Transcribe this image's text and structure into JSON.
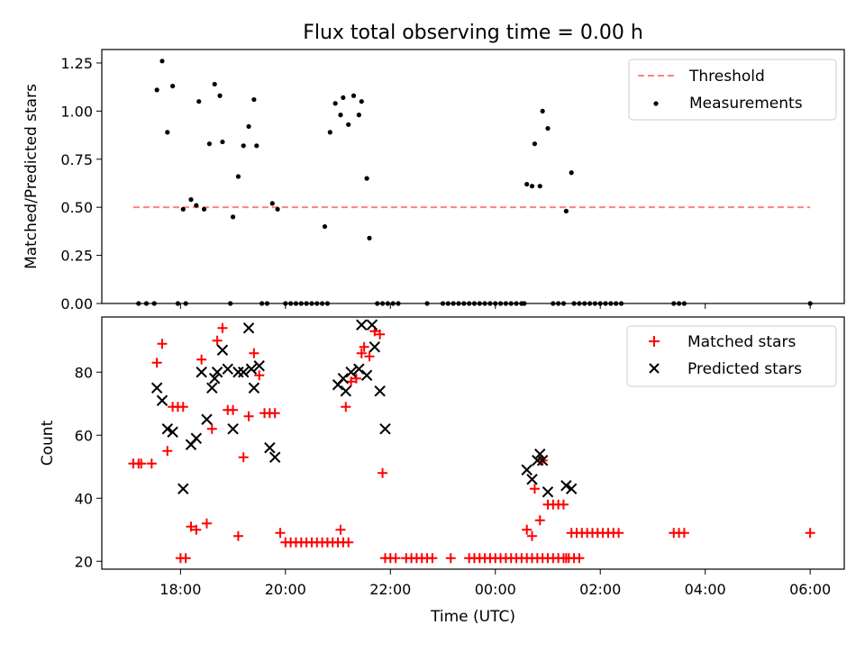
{
  "chart_data": [
    {
      "type": "scatter",
      "title": "Flux total observing time = 0.00 h",
      "xlabel": "",
      "ylabel": "Matched/Predicted stars",
      "ylim": [
        0,
        1.32
      ],
      "yticks": [
        "0.00",
        "0.25",
        "0.50",
        "0.75",
        "1.00",
        "1.25"
      ],
      "grid": false,
      "legend_position": "top-right",
      "threshold": {
        "name": "Threshold",
        "value": 0.5,
        "x_start": -6.9,
        "x_end": 6.0,
        "color": "#ff8080"
      },
      "series": [
        {
          "name": "Measurements",
          "color": "#000000",
          "points": [
            [
              -6.8,
              0
            ],
            [
              -6.65,
              0
            ],
            [
              -6.5,
              0
            ],
            [
              -6.45,
              1.11
            ],
            [
              -6.35,
              1.26
            ],
            [
              -6.25,
              0.89
            ],
            [
              -6.15,
              1.13
            ],
            [
              -6.05,
              0
            ],
            [
              -5.9,
              0
            ],
            [
              -5.95,
              0.49
            ],
            [
              -5.8,
              0.54
            ],
            [
              -5.7,
              0.51
            ],
            [
              -5.55,
              0.49
            ],
            [
              -5.65,
              1.05
            ],
            [
              -5.45,
              0.83
            ],
            [
              -5.35,
              1.14
            ],
            [
              -5.25,
              1.08
            ],
            [
              -5.2,
              0.84
            ],
            [
              -5.0,
              0.45
            ],
            [
              -4.9,
              0.66
            ],
            [
              -4.8,
              0.82
            ],
            [
              -4.7,
              0.92
            ],
            [
              -4.6,
              1.06
            ],
            [
              -4.55,
              0.82
            ],
            [
              -4.45,
              0
            ],
            [
              -4.35,
              0
            ],
            [
              -4.25,
              0.52
            ],
            [
              -4.15,
              0.49
            ],
            [
              -5.05,
              0
            ],
            [
              -4.0,
              0
            ],
            [
              -3.9,
              0
            ],
            [
              -3.8,
              0
            ],
            [
              -3.7,
              0
            ],
            [
              -3.6,
              0
            ],
            [
              -3.5,
              0
            ],
            [
              -3.4,
              0
            ],
            [
              -3.3,
              0
            ],
            [
              -3.2,
              0
            ],
            [
              -3.25,
              0.4
            ],
            [
              -3.15,
              0.89
            ],
            [
              -3.05,
              1.04
            ],
            [
              -2.95,
              0.98
            ],
            [
              -2.9,
              1.07
            ],
            [
              -2.8,
              0.93
            ],
            [
              -2.7,
              1.08
            ],
            [
              -2.6,
              0.98
            ],
            [
              -2.55,
              1.05
            ],
            [
              -2.45,
              0.65
            ],
            [
              -2.4,
              0.34
            ],
            [
              -2.25,
              0
            ],
            [
              -2.15,
              0
            ],
            [
              -2.05,
              0
            ],
            [
              -1.95,
              0
            ],
            [
              -1.85,
              0
            ],
            [
              -1.3,
              0
            ],
            [
              -1.0,
              0
            ],
            [
              -0.9,
              0
            ],
            [
              -0.8,
              0
            ],
            [
              -0.7,
              0
            ],
            [
              -0.6,
              0
            ],
            [
              -0.5,
              0
            ],
            [
              -0.4,
              0
            ],
            [
              -0.3,
              0
            ],
            [
              -0.2,
              0
            ],
            [
              -0.1,
              0
            ],
            [
              0.0,
              0
            ],
            [
              0.1,
              0
            ],
            [
              0.2,
              0
            ],
            [
              0.3,
              0
            ],
            [
              0.4,
              0
            ],
            [
              0.5,
              0
            ],
            [
              0.55,
              0
            ],
            [
              0.6,
              0.62
            ],
            [
              0.7,
              0.61
            ],
            [
              0.75,
              0.83
            ],
            [
              0.85,
              0.61
            ],
            [
              0.9,
              1.0
            ],
            [
              1.0,
              0.91
            ],
            [
              1.1,
              0
            ],
            [
              1.2,
              0
            ],
            [
              1.3,
              0
            ],
            [
              1.35,
              0.48
            ],
            [
              1.45,
              0.68
            ],
            [
              1.5,
              0
            ],
            [
              1.6,
              0
            ],
            [
              1.7,
              0
            ],
            [
              1.8,
              0
            ],
            [
              1.9,
              0
            ],
            [
              2.0,
              0
            ],
            [
              2.1,
              0
            ],
            [
              2.2,
              0
            ],
            [
              2.3,
              0
            ],
            [
              2.4,
              0
            ],
            [
              3.4,
              0
            ],
            [
              3.5,
              0
            ],
            [
              3.6,
              0
            ],
            [
              6.0,
              0
            ]
          ]
        }
      ]
    },
    {
      "type": "scatter",
      "title": "",
      "xlabel": "Time (UTC)",
      "ylabel": "Count",
      "xlim": [
        -7.5,
        6.65
      ],
      "ylim": [
        17.5,
        97.5
      ],
      "xticks": [
        {
          "value": -6,
          "label": "18:00"
        },
        {
          "value": -4,
          "label": "20:00"
        },
        {
          "value": -2,
          "label": "22:00"
        },
        {
          "value": 0,
          "label": "00:00"
        },
        {
          "value": 2,
          "label": "02:00"
        },
        {
          "value": 4,
          "label": "04:00"
        },
        {
          "value": 6,
          "label": "06:00"
        }
      ],
      "yticks": [
        "20",
        "40",
        "60",
        "80"
      ],
      "grid": false,
      "legend_position": "top-right",
      "series": [
        {
          "name": "Matched stars",
          "color": "#ff0000",
          "marker": "plus",
          "points": [
            [
              -6.9,
              51
            ],
            [
              -6.8,
              51
            ],
            [
              -6.75,
              51
            ],
            [
              -6.55,
              51
            ],
            [
              -6.45,
              83
            ],
            [
              -6.35,
              89
            ],
            [
              -6.25,
              55
            ],
            [
              -6.15,
              69
            ],
            [
              -6.05,
              69
            ],
            [
              -5.95,
              69
            ],
            [
              -6.0,
              21
            ],
            [
              -5.9,
              21
            ],
            [
              -5.8,
              31
            ],
            [
              -5.7,
              30
            ],
            [
              -5.6,
              84
            ],
            [
              -5.5,
              32
            ],
            [
              -5.4,
              62
            ],
            [
              -5.3,
              90
            ],
            [
              -5.2,
              94
            ],
            [
              -5.1,
              68
            ],
            [
              -5.0,
              68
            ],
            [
              -4.9,
              28
            ],
            [
              -4.8,
              53
            ],
            [
              -4.7,
              66
            ],
            [
              -4.6,
              86
            ],
            [
              -4.5,
              79
            ],
            [
              -4.4,
              67
            ],
            [
              -4.3,
              67
            ],
            [
              -4.2,
              67
            ],
            [
              -4.1,
              29
            ],
            [
              -4.0,
              26
            ],
            [
              -3.9,
              26
            ],
            [
              -3.8,
              26
            ],
            [
              -3.7,
              26
            ],
            [
              -3.6,
              26
            ],
            [
              -3.5,
              26
            ],
            [
              -3.4,
              26
            ],
            [
              -3.3,
              26
            ],
            [
              -3.2,
              26
            ],
            [
              -3.1,
              26
            ],
            [
              -3.0,
              26
            ],
            [
              -2.9,
              26
            ],
            [
              -2.8,
              26
            ],
            [
              -2.95,
              30
            ],
            [
              -2.85,
              69
            ],
            [
              -2.75,
              77
            ],
            [
              -2.65,
              78
            ],
            [
              -2.55,
              86
            ],
            [
              -2.5,
              88
            ],
            [
              -2.4,
              85
            ],
            [
              -2.3,
              93
            ],
            [
              -2.2,
              92
            ],
            [
              -2.15,
              48
            ],
            [
              -2.1,
              21
            ],
            [
              -2.0,
              21
            ],
            [
              -1.9,
              21
            ],
            [
              -1.7,
              21
            ],
            [
              -1.6,
              21
            ],
            [
              -1.5,
              21
            ],
            [
              -1.4,
              21
            ],
            [
              -1.3,
              21
            ],
            [
              -1.2,
              21
            ],
            [
              -0.85,
              21
            ],
            [
              -0.5,
              21
            ],
            [
              -0.4,
              21
            ],
            [
              -0.3,
              21
            ],
            [
              -0.2,
              21
            ],
            [
              -0.1,
              21
            ],
            [
              0.0,
              21
            ],
            [
              0.1,
              21
            ],
            [
              0.2,
              21
            ],
            [
              0.3,
              21
            ],
            [
              0.4,
              21
            ],
            [
              0.5,
              21
            ],
            [
              0.6,
              21
            ],
            [
              0.7,
              21
            ],
            [
              0.8,
              21
            ],
            [
              0.9,
              21
            ],
            [
              1.0,
              21
            ],
            [
              1.1,
              21
            ],
            [
              1.2,
              21
            ],
            [
              1.3,
              21
            ],
            [
              1.4,
              21
            ],
            [
              1.5,
              21
            ],
            [
              1.6,
              21
            ],
            [
              0.6,
              30
            ],
            [
              0.7,
              28
            ],
            [
              0.75,
              43
            ],
            [
              0.85,
              33
            ],
            [
              0.9,
              52
            ],
            [
              1.0,
              38
            ],
            [
              1.1,
              38
            ],
            [
              1.2,
              38
            ],
            [
              1.3,
              38
            ],
            [
              1.35,
              21
            ],
            [
              1.45,
              29
            ],
            [
              1.55,
              29
            ],
            [
              1.65,
              29
            ],
            [
              1.75,
              29
            ],
            [
              1.85,
              29
            ],
            [
              1.95,
              29
            ],
            [
              2.05,
              29
            ],
            [
              2.15,
              29
            ],
            [
              2.25,
              29
            ],
            [
              2.35,
              29
            ],
            [
              3.4,
              29
            ],
            [
              3.5,
              29
            ],
            [
              3.6,
              29
            ],
            [
              6.0,
              29
            ]
          ]
        },
        {
          "name": "Predicted stars",
          "color": "#000000",
          "marker": "x",
          "points": [
            [
              -6.45,
              75
            ],
            [
              -6.35,
              71
            ],
            [
              -6.25,
              62
            ],
            [
              -6.15,
              61
            ],
            [
              -5.95,
              43
            ],
            [
              -5.8,
              57
            ],
            [
              -5.7,
              59
            ],
            [
              -5.6,
              80
            ],
            [
              -5.5,
              65
            ],
            [
              -5.4,
              75
            ],
            [
              -5.35,
              78
            ],
            [
              -5.3,
              80
            ],
            [
              -5.2,
              87
            ],
            [
              -5.1,
              81
            ],
            [
              -5.0,
              62
            ],
            [
              -4.9,
              80
            ],
            [
              -4.8,
              80
            ],
            [
              -4.7,
              94
            ],
            [
              -4.65,
              81
            ],
            [
              -4.6,
              75
            ],
            [
              -4.5,
              82
            ],
            [
              -4.3,
              56
            ],
            [
              -4.2,
              53
            ],
            [
              -3.0,
              76
            ],
            [
              -2.9,
              78
            ],
            [
              -2.85,
              74
            ],
            [
              -2.75,
              80
            ],
            [
              -2.6,
              81
            ],
            [
              -2.55,
              95
            ],
            [
              -2.45,
              79
            ],
            [
              -2.35,
              95
            ],
            [
              -2.3,
              88
            ],
            [
              -2.2,
              74
            ],
            [
              -2.1,
              62
            ],
            [
              0.6,
              49
            ],
            [
              0.7,
              46
            ],
            [
              0.8,
              52
            ],
            [
              0.85,
              54
            ],
            [
              0.9,
              52
            ],
            [
              1.0,
              42
            ],
            [
              1.35,
              44
            ],
            [
              1.45,
              43
            ]
          ]
        }
      ]
    }
  ]
}
